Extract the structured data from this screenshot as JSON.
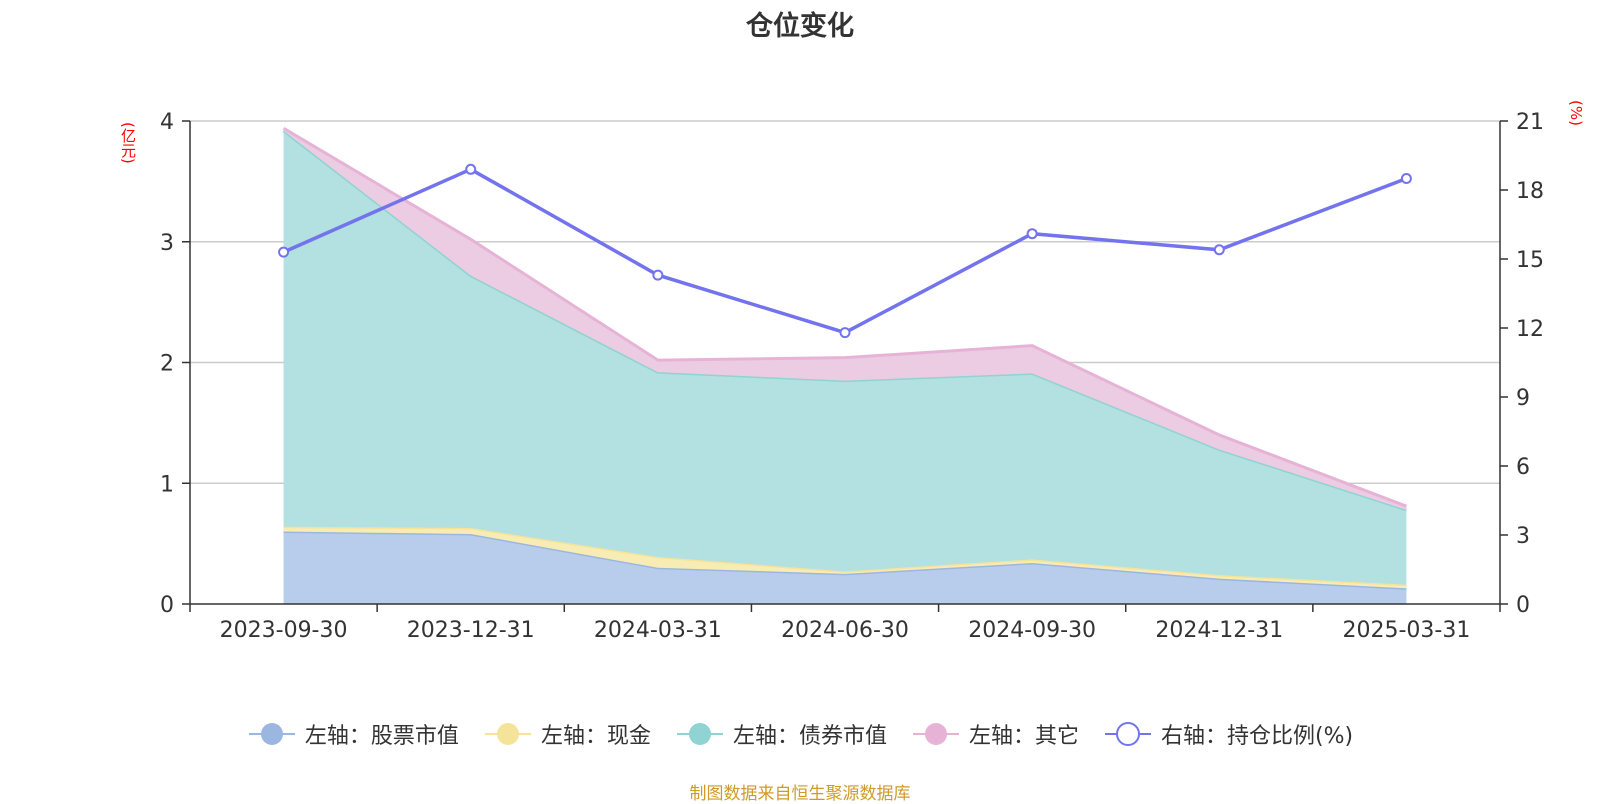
{
  "chart_data": {
    "type": "area",
    "title": "仓位变化",
    "left_axis_unit": "(亿元)",
    "right_axis_unit": "(%)",
    "categories": [
      "2023-09-30",
      "2023-12-31",
      "2024-03-31",
      "2024-06-30",
      "2024-09-30",
      "2024-12-31",
      "2025-03-31"
    ],
    "left_axis": {
      "min": 0,
      "max": 4,
      "ticks": [
        "0",
        "1",
        "2",
        "3",
        "4"
      ]
    },
    "right_axis": {
      "min": 0,
      "max": 21,
      "ticks": [
        "0",
        "3",
        "6",
        "9",
        "12",
        "15",
        "18",
        "21"
      ]
    },
    "grid": true,
    "stacked": true,
    "series": [
      {
        "name": "左轴：股票市值",
        "axis": "left",
        "color": "#9bb7e0",
        "fill": "#b8cdeb",
        "values": [
          0.6,
          0.58,
          0.3,
          0.25,
          0.34,
          0.21,
          0.13
        ]
      },
      {
        "name": "左轴：现金",
        "axis": "left",
        "color": "#f5e39a",
        "fill": "#f8ecb5",
        "values": [
          0.04,
          0.05,
          0.09,
          0.02,
          0.03,
          0.03,
          0.03
        ]
      },
      {
        "name": "左轴：债券市值",
        "axis": "left",
        "color": "#8fd3d2",
        "fill": "#b3e0e0",
        "values": [
          3.28,
          2.09,
          1.53,
          1.58,
          1.54,
          1.04,
          0.62
        ]
      },
      {
        "name": "左轴：其它",
        "axis": "left",
        "color": "#e6b3d6",
        "fill": "#eccce3",
        "values": [
          0.02,
          0.3,
          0.1,
          0.19,
          0.23,
          0.12,
          0.03
        ]
      },
      {
        "name": "右轴：持仓比例(%)",
        "axis": "right",
        "color": "#7473ee",
        "type": "line",
        "values": [
          15.3,
          18.9,
          14.3,
          11.8,
          16.1,
          15.4,
          18.5
        ]
      }
    ],
    "legend_position": "bottom-center"
  },
  "source_note": "制图数据来自恒生聚源数据库"
}
